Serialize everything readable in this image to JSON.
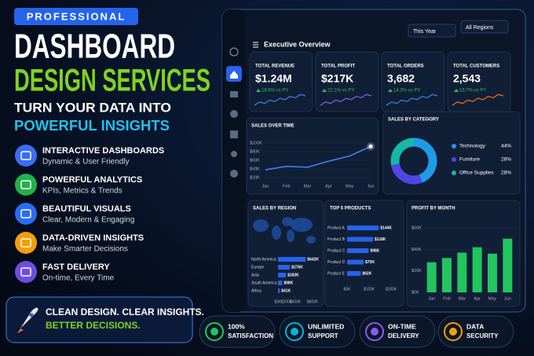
{
  "badge": "PROFESSIONAL",
  "headline": [
    "DASHBOARD",
    "DESIGN SERVICES"
  ],
  "subheadline": [
    "TURN YOUR DATA INTO",
    "POWERFUL INSIGHTS"
  ],
  "features": [
    {
      "title": "INTERACTIVE DASHBOARDS",
      "subtitle": "Dynamic & User Friendly",
      "color": "#3b6cf5"
    },
    {
      "title": "POWERFUL ANALYTICS",
      "subtitle": "KPIs, Metrics & Trends",
      "color": "#22b14c"
    },
    {
      "title": "BEAUTIFUL VISUALS",
      "subtitle": "Clear, Modern & Engaging",
      "color": "#2a6df4"
    },
    {
      "title": "DATA-DRIVEN INSIGHTS",
      "subtitle": "Make Smarter Decisions",
      "color": "#f59e0b"
    },
    {
      "title": "FAST DELIVERY",
      "subtitle": "On-time, Every Time",
      "color": "#6d4de0"
    }
  ],
  "tagline": [
    "CLEAN DESIGN. CLEAR INSIGHTS.",
    "BETTER DECISIONS."
  ],
  "dashboard": {
    "title": "Executive Overview",
    "filters": [
      "This Year",
      "All Regions"
    ],
    "kpis": [
      {
        "label": "TOTAL REVENUE",
        "value": "$1.24M",
        "change": "18.6% vs PY",
        "color": "#3b82f6"
      },
      {
        "label": "TOTAL PROFIT",
        "value": "$217K",
        "change": "22.1% vs PY",
        "color": "#8b5cf6"
      },
      {
        "label": "TOTAL ORDERS",
        "value": "3,682",
        "change": "14.3% vs PY",
        "color": "#3b82f6"
      },
      {
        "label": "TOTAL CUSTOMERS",
        "value": "2,543",
        "change": "16.7% vs PY",
        "color": "#f97316"
      }
    ],
    "sales_over_time": {
      "type": "line",
      "title": "SALES OVER TIME",
      "color": "#3b82f6",
      "categories": [
        "Jan",
        "Feb",
        "Mar",
        "Apr",
        "May",
        "Jun"
      ],
      "values": [
        38000,
        46000,
        44000,
        58000,
        70000,
        92000
      ],
      "ylim": [
        20000,
        100000
      ],
      "yticks": [
        {
          "value": 100000,
          "label": "$100K"
        },
        {
          "value": 80000,
          "label": "$80K"
        },
        {
          "value": 60000,
          "label": "$60K"
        },
        {
          "value": 40000,
          "label": "$40K"
        },
        {
          "value": 20000,
          "label": "$20K"
        }
      ]
    },
    "sales_by_category": {
      "type": "pie",
      "title": "SALES BY CATEGORY",
      "categories": [
        "Technology",
        "Furniture",
        "Office Supplies"
      ],
      "values": [
        44,
        28,
        28
      ],
      "value_labels": [
        "44%",
        "28%",
        "28%"
      ],
      "colors": [
        "#1e9be8",
        "#4f46e5",
        "#14b8a6"
      ]
    },
    "sales_by_region": {
      "type": "bar",
      "title": "SALES BY REGION",
      "color": "#2563eb",
      "categories": [
        "North America",
        "Europe",
        "Asia",
        "South America",
        "Africa"
      ],
      "values": [
        642000,
        276000,
        183000,
        98000,
        41000
      ],
      "value_labels": [
        "$642K",
        "$276K",
        "$183K",
        "$98K",
        "$41K"
      ],
      "xlim": [
        0,
        800000
      ],
      "xticks": [
        {
          "value": 0,
          "label": "$0K"
        },
        {
          "value": 200000,
          "label": "$200K"
        },
        {
          "value": 400000,
          "label": "$400K"
        },
        {
          "value": 800000,
          "label": "$800K"
        }
      ]
    },
    "top_products": {
      "type": "bar",
      "title": "TOP 5 PRODUCTS",
      "color": "#2563eb",
      "categories": [
        "Product A",
        "Product B",
        "Product C",
        "Product D",
        "Product E"
      ],
      "values": [
        144000,
        118000,
        98000,
        75000,
        62000
      ],
      "value_labels": [
        "$144K",
        "$118K",
        "$98K",
        "$75K",
        "$62K"
      ],
      "xlim": [
        0,
        200000
      ],
      "xticks": [
        {
          "value": 0,
          "label": "$0K"
        },
        {
          "value": 100000,
          "label": "$100K"
        },
        {
          "value": 200000,
          "label": "$200K"
        }
      ]
    },
    "profit_by_month": {
      "type": "bar",
      "title": "PROFIT BY MONTH",
      "color": "#22c55e",
      "categories": [
        "Jan",
        "Feb",
        "Mar",
        "Apr",
        "May",
        "Jun"
      ],
      "values": [
        28000,
        32000,
        37000,
        42000,
        36000,
        50000
      ],
      "ylim": [
        0,
        60000
      ],
      "yticks": [
        {
          "value": 60000,
          "label": "$60K"
        },
        {
          "value": 40000,
          "label": "$40K"
        },
        {
          "value": 20000,
          "label": "$20K"
        },
        {
          "value": 0,
          "label": "$0K"
        }
      ]
    }
  },
  "badges": [
    {
      "line1": "100%",
      "line2": "SATISFACTION",
      "color": "#22c55e"
    },
    {
      "line1": "UNLIMITED",
      "line2": "SUPPORT",
      "color": "#06b6d4"
    },
    {
      "line1": "ON-TIME",
      "line2": "DELIVERY",
      "color": "#8b5cf6"
    },
    {
      "line1": "DATA",
      "line2": "SECURITY",
      "color": "#f59e0b"
    }
  ]
}
